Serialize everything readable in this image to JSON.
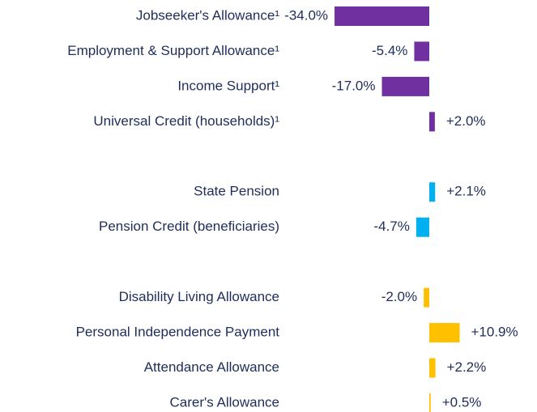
{
  "chart_data": {
    "type": "bar",
    "orientation": "horizontal",
    "categories": [
      "Jobseeker's Allowance¹",
      "Employment & Support Allowance¹",
      "Income Support¹",
      "Universal Credit (households)¹",
      null,
      "State Pension",
      "Pension Credit (beneficiaries)",
      null,
      "Disability Living Allowance",
      "Personal Independence Payment",
      "Attendance Allowance",
      "Carer's Allowance"
    ],
    "values": [
      -34.0,
      -5.4,
      -17.0,
      2.0,
      null,
      2.1,
      -4.7,
      null,
      -2.0,
      10.9,
      2.2,
      0.5
    ],
    "value_labels": [
      "-34.0%",
      "-5.4%",
      "-17.0%",
      "+2.0%",
      null,
      "+2.1%",
      "-4.7%",
      null,
      "-2.0%",
      "+10.9%",
      "+2.2%",
      "+0.5%"
    ],
    "colors": [
      "#7030a0",
      "#7030a0",
      "#7030a0",
      "#7030a0",
      null,
      "#00b0f0",
      "#00b0f0",
      null,
      "#ffc000",
      "#ffc000",
      "#ffc000",
      "#ffc000"
    ]
  }
}
